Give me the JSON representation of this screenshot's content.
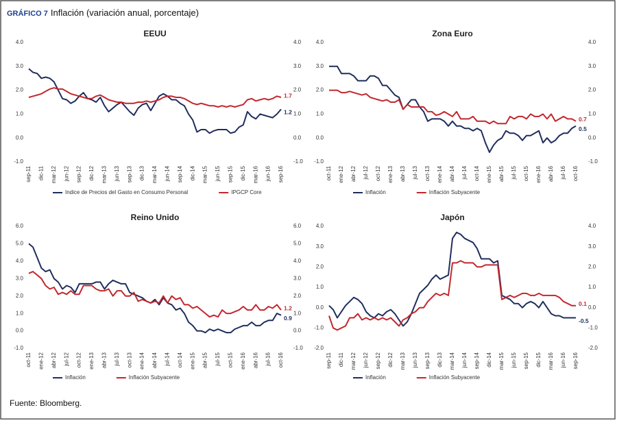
{
  "figure": {
    "label": "GRÁFICO 7",
    "title": "Inflación (variación anual, porcentaje)",
    "source": "Fuente: Bloomberg."
  },
  "chart_data": [
    {
      "type": "line",
      "title": "EEUU",
      "categories": [
        "sep-11",
        null,
        null,
        "dic-11",
        null,
        null,
        "mar-12",
        null,
        null,
        "jun-12",
        null,
        null,
        "sep-12",
        null,
        null,
        "dic-12",
        null,
        null,
        "mar-13",
        null,
        null,
        "jun-13",
        null,
        null,
        "sep-13",
        null,
        null,
        "dic-13",
        null,
        null,
        "mar-14",
        null,
        null,
        "jun-14",
        null,
        null,
        "sep-14",
        null,
        null,
        "dic-14",
        null,
        null,
        "mar-15",
        null,
        null,
        "jun-15",
        null,
        null,
        "sep-15",
        null,
        null,
        "dic-15",
        null,
        null,
        "mar-16",
        null,
        null,
        "jun-16",
        null,
        null,
        "sep-16"
      ],
      "series": [
        {
          "name": "Indice de Precios del Gasto en Consumo Personal",
          "color": "#1f2d5c",
          "values": [
            2.9,
            2.75,
            2.7,
            2.5,
            2.55,
            2.5,
            2.35,
            2.0,
            1.65,
            1.6,
            1.45,
            1.55,
            1.75,
            1.9,
            1.65,
            1.6,
            1.5,
            1.7,
            1.35,
            1.1,
            1.25,
            1.4,
            1.5,
            1.3,
            1.1,
            0.95,
            1.25,
            1.4,
            1.45,
            1.15,
            1.45,
            1.75,
            1.85,
            1.75,
            1.6,
            1.6,
            1.45,
            1.35,
            1.0,
            0.75,
            0.25,
            0.35,
            0.35,
            0.2,
            0.3,
            0.35,
            0.35,
            0.35,
            0.2,
            0.25,
            0.45,
            0.55,
            1.1,
            0.9,
            0.8,
            1.0,
            0.95,
            0.9,
            0.85,
            1.0,
            1.2
          ]
        },
        {
          "name": "IPGCP Core",
          "color": "#c1272d",
          "values": [
            1.7,
            1.75,
            1.8,
            1.85,
            1.95,
            2.05,
            2.1,
            2.05,
            2.05,
            1.95,
            1.85,
            1.8,
            1.75,
            1.7,
            1.65,
            1.65,
            1.75,
            1.8,
            1.7,
            1.6,
            1.55,
            1.5,
            1.5,
            1.45,
            1.45,
            1.45,
            1.5,
            1.5,
            1.55,
            1.5,
            1.55,
            1.6,
            1.7,
            1.75,
            1.75,
            1.7,
            1.7,
            1.65,
            1.55,
            1.45,
            1.4,
            1.45,
            1.4,
            1.35,
            1.35,
            1.3,
            1.35,
            1.3,
            1.35,
            1.3,
            1.35,
            1.4,
            1.6,
            1.65,
            1.55,
            1.6,
            1.65,
            1.6,
            1.65,
            1.75,
            1.7
          ]
        }
      ],
      "ylim": [
        -1,
        4
      ],
      "yticks": [
        {
          "value": -1,
          "label": "-1.0"
        },
        {
          "value": 0,
          "label": "0.0"
        },
        {
          "value": 1,
          "label": "1.0"
        },
        {
          "value": 2,
          "label": "2.0"
        },
        {
          "value": 3,
          "label": "3.0"
        },
        {
          "value": 4,
          "label": "4.0"
        }
      ],
      "y2lim": [
        -1,
        4
      ],
      "y2ticks": [
        {
          "value": -1,
          "label": "-1.0"
        },
        {
          "value": 0,
          "label": "0.0"
        },
        {
          "value": 1,
          "label": "1.0"
        },
        {
          "value": 2,
          "label": "2.0"
        },
        {
          "value": 3,
          "label": "3.0"
        },
        {
          "value": 4,
          "label": "4.0"
        }
      ]
    },
    {
      "type": "line",
      "title": "Zona Euro",
      "categories": [
        "oct-11",
        null,
        null,
        "ene-12",
        null,
        null,
        "abr-12",
        null,
        null,
        "jul-12",
        null,
        null,
        "oct-12",
        null,
        null,
        "ene-13",
        null,
        null,
        "abr-13",
        null,
        null,
        "jul-13",
        null,
        null,
        "oct-13",
        null,
        null,
        "ene-14",
        null,
        null,
        "abr-14",
        null,
        null,
        "jul-14",
        null,
        null,
        "oct-14",
        null,
        null,
        "ene-15",
        null,
        null,
        "abr-15",
        null,
        null,
        "jul-15",
        null,
        null,
        "oct-15",
        null,
        null,
        "ene-16",
        null,
        null,
        "abr-16",
        null,
        null,
        "jul-16",
        null,
        null,
        "oct-16"
      ],
      "series": [
        {
          "name": "Inflación",
          "color": "#1f2d5c",
          "values": [
            3.0,
            3.0,
            3.0,
            2.7,
            2.7,
            2.7,
            2.6,
            2.4,
            2.4,
            2.4,
            2.6,
            2.6,
            2.5,
            2.2,
            2.2,
            2.0,
            1.8,
            1.7,
            1.2,
            1.4,
            1.6,
            1.6,
            1.3,
            1.1,
            0.7,
            0.8,
            0.8,
            0.8,
            0.7,
            0.5,
            0.7,
            0.5,
            0.5,
            0.4,
            0.4,
            0.3,
            0.4,
            0.3,
            -0.2,
            -0.6,
            -0.3,
            -0.1,
            0.0,
            0.3,
            0.2,
            0.2,
            0.1,
            -0.1,
            0.1,
            0.1,
            0.2,
            0.3,
            -0.2,
            0.0,
            -0.2,
            -0.1,
            0.1,
            0.2,
            0.2,
            0.4,
            0.5
          ]
        },
        {
          "name": "Inflación Subyacente",
          "color": "#c1272d",
          "values": [
            2.0,
            2.0,
            2.0,
            1.9,
            1.9,
            1.95,
            1.9,
            1.85,
            1.8,
            1.85,
            1.7,
            1.65,
            1.6,
            1.55,
            1.6,
            1.5,
            1.5,
            1.6,
            1.2,
            1.4,
            1.3,
            1.3,
            1.3,
            1.3,
            1.1,
            1.1,
            0.95,
            1.0,
            1.1,
            1.0,
            0.9,
            1.1,
            0.8,
            0.8,
            0.8,
            0.9,
            0.7,
            0.7,
            0.7,
            0.6,
            0.7,
            0.6,
            0.6,
            0.6,
            0.9,
            0.8,
            0.9,
            0.9,
            0.8,
            1.0,
            0.9,
            0.9,
            1.0,
            0.8,
            1.0,
            0.7,
            0.8,
            0.9,
            0.8,
            0.8,
            0.7
          ]
        }
      ],
      "ylim": [
        -1,
        4
      ],
      "yticks": [
        {
          "value": -1,
          "label": "-1.0"
        },
        {
          "value": 0,
          "label": "0.0"
        },
        {
          "value": 1,
          "label": "1.0"
        },
        {
          "value": 2,
          "label": "2.0"
        },
        {
          "value": 3,
          "label": "3.0"
        },
        {
          "value": 4,
          "label": "4.0"
        }
      ],
      "y2lim": [
        -1,
        4
      ],
      "y2ticks": [
        {
          "value": -1,
          "label": "-1.0"
        },
        {
          "value": 0,
          "label": "0.0"
        },
        {
          "value": 1,
          "label": "1.0"
        },
        {
          "value": 2,
          "label": "2.0"
        },
        {
          "value": 3,
          "label": "3.0"
        },
        {
          "value": 4,
          "label": "4.0"
        }
      ]
    },
    {
      "type": "line",
      "title": "Reino Unido",
      "categories": [
        "oct-11",
        null,
        null,
        "ene-12",
        null,
        null,
        "abr-12",
        null,
        null,
        "jul-12",
        null,
        null,
        "oct-12",
        null,
        null,
        "ene-13",
        null,
        null,
        "abr-13",
        null,
        null,
        "jul-13",
        null,
        null,
        "oct-13",
        null,
        null,
        "ene-14",
        null,
        null,
        "abr-14",
        null,
        null,
        "jul-14",
        null,
        null,
        "oct-14",
        null,
        null,
        "ene-15",
        null,
        null,
        "abr-15",
        null,
        null,
        "jul-15",
        null,
        null,
        "oct-15",
        null,
        null,
        "ene-16",
        null,
        null,
        "abr-16",
        null,
        null,
        "jul-16",
        null,
        null,
        "oct-16"
      ],
      "series": [
        {
          "name": "Inflación",
          "color": "#1f2d5c",
          "values": [
            5.0,
            4.8,
            4.2,
            3.6,
            3.4,
            3.5,
            3.0,
            2.8,
            2.4,
            2.6,
            2.5,
            2.2,
            2.7,
            2.7,
            2.7,
            2.7,
            2.8,
            2.8,
            2.4,
            2.7,
            2.9,
            2.8,
            2.7,
            2.7,
            2.2,
            2.1,
            2.0,
            1.9,
            1.7,
            1.6,
            1.8,
            1.5,
            1.9,
            1.6,
            1.5,
            1.2,
            1.3,
            1.0,
            0.5,
            0.3,
            0.0,
            0.0,
            -0.1,
            0.1,
            0.0,
            0.1,
            0.0,
            -0.1,
            -0.1,
            0.1,
            0.2,
            0.3,
            0.3,
            0.5,
            0.3,
            0.3,
            0.5,
            0.6,
            0.6,
            1.0,
            0.9
          ]
        },
        {
          "name": "Inflación Subyacente",
          "color": "#c1272d",
          "values": [
            3.3,
            3.4,
            3.2,
            3.0,
            2.6,
            2.4,
            2.5,
            2.1,
            2.2,
            2.1,
            2.3,
            2.1,
            2.1,
            2.6,
            2.6,
            2.6,
            2.4,
            2.3,
            2.3,
            2.4,
            2.0,
            2.3,
            2.3,
            2.0,
            2.0,
            2.2,
            1.7,
            1.8,
            1.7,
            1.6,
            1.7,
            1.6,
            2.0,
            1.6,
            2.0,
            1.8,
            1.9,
            1.5,
            1.5,
            1.3,
            1.4,
            1.2,
            1.0,
            0.8,
            0.9,
            0.8,
            1.2,
            1.0,
            1.0,
            1.1,
            1.2,
            1.4,
            1.2,
            1.2,
            1.5,
            1.2,
            1.2,
            1.4,
            1.3,
            1.5,
            1.2
          ]
        }
      ],
      "ylim": [
        -1,
        6
      ],
      "yticks": [
        {
          "value": -1,
          "label": "-1.0"
        },
        {
          "value": 0,
          "label": "0.0"
        },
        {
          "value": 1,
          "label": "1.0"
        },
        {
          "value": 2,
          "label": "2.0"
        },
        {
          "value": 3,
          "label": "3.0"
        },
        {
          "value": 4,
          "label": "4.0"
        },
        {
          "value": 5,
          "label": "5.0"
        },
        {
          "value": 6,
          "label": "6.0"
        }
      ],
      "y2lim": [
        -1,
        6
      ],
      "y2ticks": [
        {
          "value": -1,
          "label": "-1.0"
        },
        {
          "value": 0,
          "label": "0.0"
        },
        {
          "value": 1,
          "label": "1.0"
        },
        {
          "value": 2,
          "label": "2.0"
        },
        {
          "value": 3,
          "label": "3.0"
        },
        {
          "value": 4,
          "label": "4.0"
        },
        {
          "value": 5,
          "label": "5.0"
        },
        {
          "value": 6,
          "label": "6.0"
        }
      ]
    },
    {
      "type": "line",
      "title": "Japón",
      "categories": [
        "sep-11",
        null,
        null,
        "dic-11",
        null,
        null,
        "mar-12",
        null,
        null,
        "jun-12",
        null,
        null,
        "sep-12",
        null,
        null,
        "dic-12",
        null,
        null,
        "mar-13",
        null,
        null,
        "jun-13",
        null,
        null,
        "sep-13",
        null,
        null,
        "dic-13",
        null,
        null,
        "mar-14",
        null,
        null,
        "jun-14",
        null,
        null,
        "sep-14",
        null,
        null,
        "dic-14",
        null,
        null,
        "mar-15",
        null,
        null,
        "jun-15",
        null,
        null,
        "sep-15",
        null,
        null,
        "dic-15",
        null,
        null,
        "mar-16",
        null,
        null,
        "jun-16",
        null,
        null,
        "sep-16"
      ],
      "series": [
        {
          "name": "Inflación",
          "color": "#1f2d5c",
          "values": [
            0.1,
            -0.1,
            -0.5,
            -0.2,
            0.1,
            0.3,
            0.5,
            0.4,
            0.2,
            -0.2,
            -0.4,
            -0.5,
            -0.3,
            -0.4,
            -0.2,
            -0.1,
            -0.3,
            -0.6,
            -0.9,
            -0.7,
            -0.3,
            0.2,
            0.7,
            0.9,
            1.1,
            1.4,
            1.6,
            1.4,
            1.5,
            1.6,
            3.4,
            3.7,
            3.6,
            3.4,
            3.3,
            3.2,
            2.9,
            2.4,
            2.4,
            2.4,
            2.2,
            2.3,
            0.6,
            0.5,
            0.4,
            0.2,
            0.2,
            0.0,
            0.2,
            0.3,
            0.2,
            0.0,
            0.3,
            0.0,
            -0.3,
            -0.4,
            -0.4,
            -0.5,
            -0.5,
            -0.5,
            -0.5
          ]
        },
        {
          "name": "Inflación Subyacente",
          "color": "#c1272d",
          "values": [
            -0.4,
            -1.0,
            -1.1,
            -1.0,
            -0.9,
            -0.5,
            -0.5,
            -0.3,
            -0.6,
            -0.5,
            -0.6,
            -0.5,
            -0.6,
            -0.5,
            -0.6,
            -0.5,
            -0.7,
            -0.9,
            -0.6,
            -0.5,
            -0.3,
            -0.2,
            0.0,
            0.0,
            0.3,
            0.5,
            0.7,
            0.6,
            0.7,
            0.6,
            2.2,
            2.2,
            2.3,
            2.2,
            2.2,
            2.2,
            2.0,
            2.0,
            2.1,
            2.1,
            2.1,
            2.1,
            0.4,
            0.5,
            0.6,
            0.5,
            0.6,
            0.7,
            0.7,
            0.6,
            0.6,
            0.7,
            0.6,
            0.6,
            0.6,
            0.6,
            0.5,
            0.3,
            0.2,
            0.1,
            0.1
          ]
        }
      ],
      "ylim": [
        -2,
        4
      ],
      "yticks": [
        {
          "value": -2,
          "label": "-2.0"
        },
        {
          "value": -1,
          "label": "-1.0"
        },
        {
          "value": 0,
          "label": "0.0"
        },
        {
          "value": 1,
          "label": "1.0"
        },
        {
          "value": 2,
          "label": "2.0"
        },
        {
          "value": 3,
          "label": "3.0"
        },
        {
          "value": 4,
          "label": "4.0"
        }
      ],
      "y2lim": [
        -2,
        4
      ],
      "y2ticks": [
        {
          "value": -2,
          "label": "-2.0"
        },
        {
          "value": -1,
          "label": "-1.0"
        },
        {
          "value": 0,
          "label": "0.0"
        },
        {
          "value": 1,
          "label": "1.0"
        },
        {
          "value": 2,
          "label": "2.0"
        },
        {
          "value": 3,
          "label": "3.0"
        },
        {
          "value": 4,
          "label": "4.0"
        }
      ]
    }
  ]
}
